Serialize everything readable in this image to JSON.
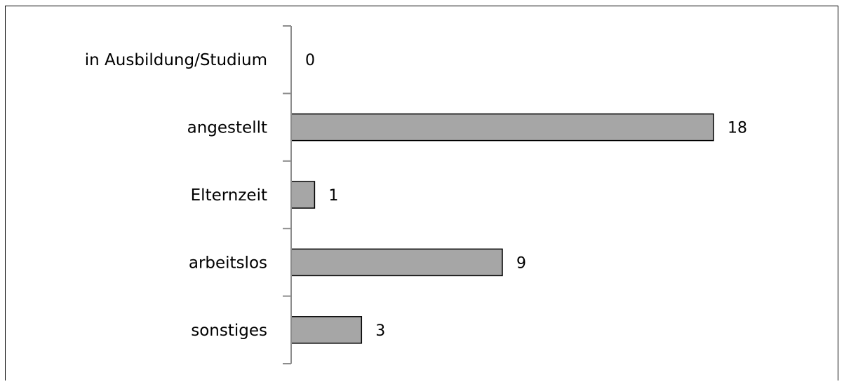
{
  "chart_data": {
    "type": "bar",
    "orientation": "horizontal",
    "categories": [
      "in Ausbildung/Studium",
      "angestellt",
      "Elternzeit",
      "arbeitslos",
      "sonstiges"
    ],
    "values": [
      0,
      18,
      1,
      9,
      3
    ],
    "data_labels": [
      "0",
      "18",
      "1",
      "9",
      "3"
    ],
    "title": "",
    "xlabel": "",
    "ylabel": "",
    "xlim": [
      0,
      18
    ],
    "grid": false,
    "legend": "none",
    "bar_color": "#a6a6a6",
    "bar_edge_color": "#000000"
  }
}
